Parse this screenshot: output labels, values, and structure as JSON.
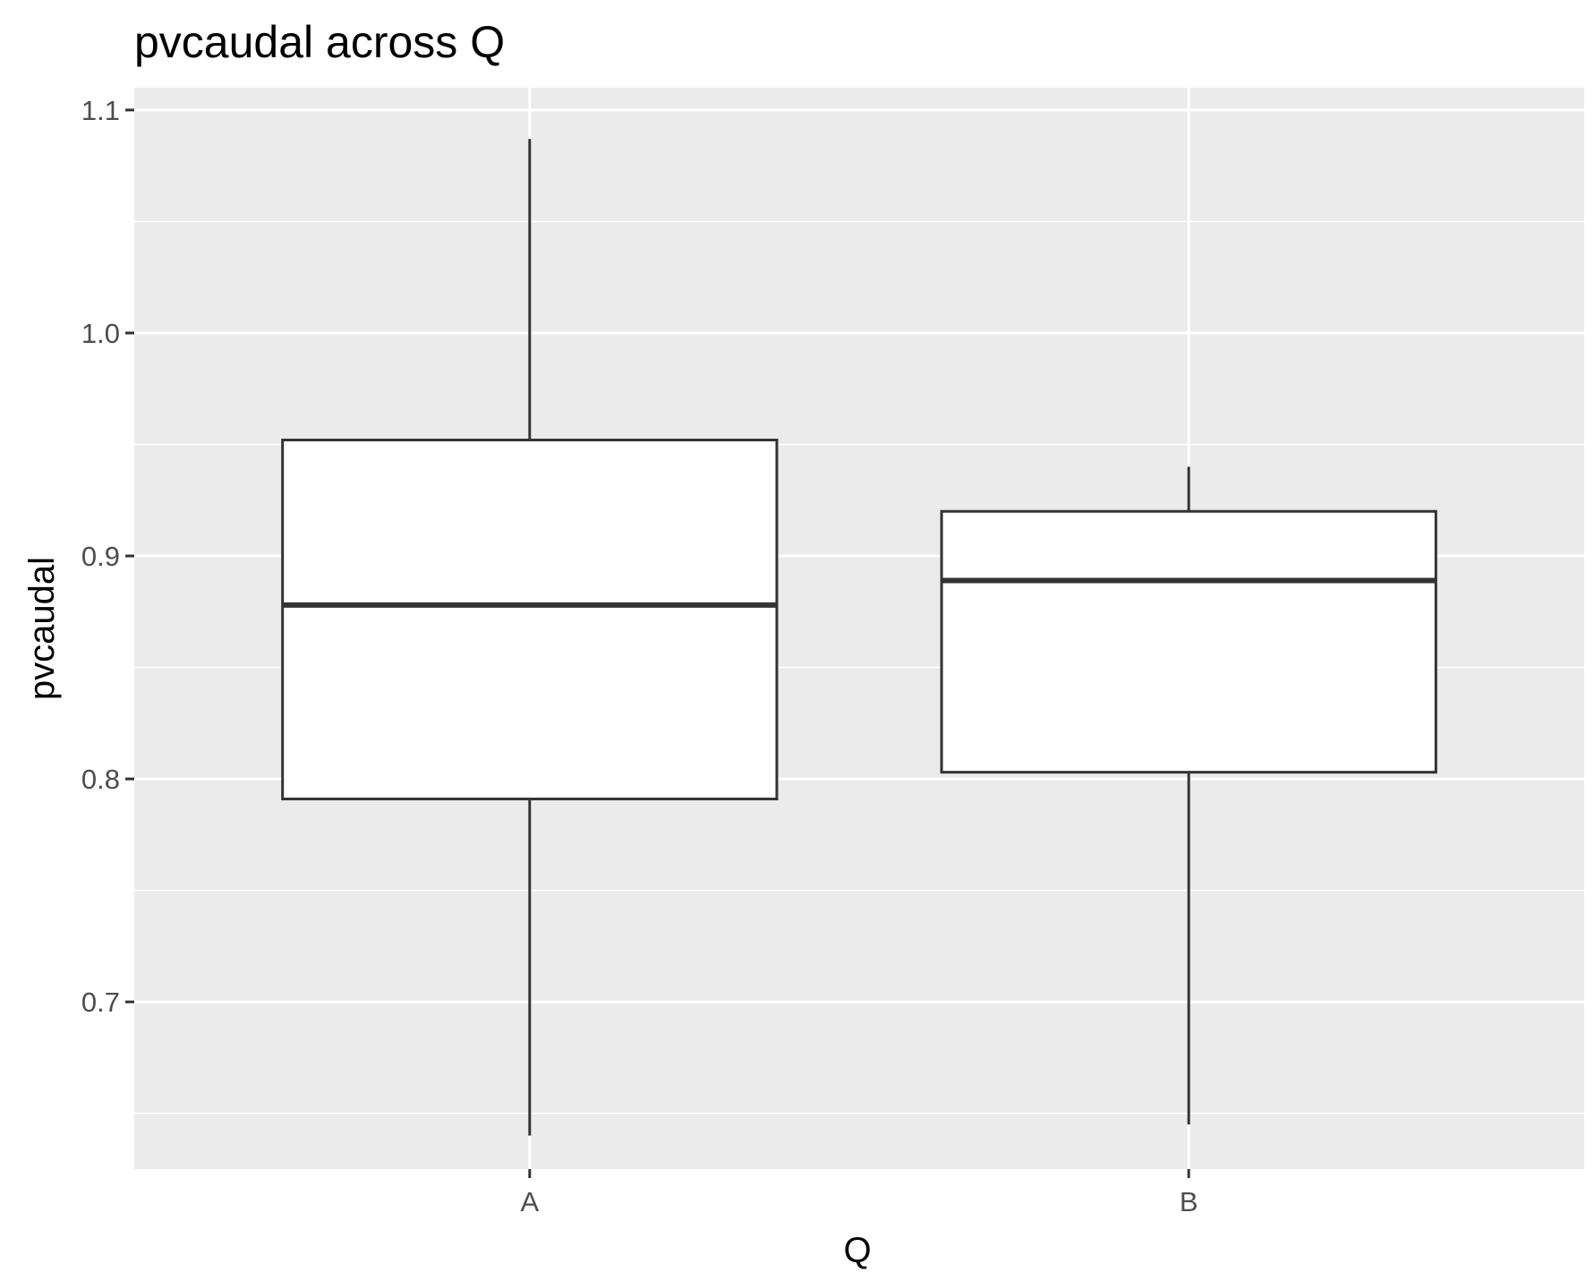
{
  "chart_data": {
    "type": "boxplot",
    "title": "pvcaudal across Q",
    "xlabel": "Q",
    "ylabel": "pvcaudal",
    "categories": [
      "A",
      "B"
    ],
    "boxes": [
      {
        "category": "A",
        "whisker_low": 0.64,
        "q1": 0.791,
        "median": 0.878,
        "q3": 0.952,
        "whisker_high": 1.087
      },
      {
        "category": "B",
        "whisker_low": 0.645,
        "q1": 0.803,
        "median": 0.889,
        "q3": 0.92,
        "whisker_high": 0.94
      }
    ],
    "ylim": [
      0.625,
      1.11
    ],
    "yticks": [
      0.7,
      0.8,
      0.9,
      1.0,
      1.1
    ],
    "ytick_labels": [
      "0.7",
      "0.8",
      "0.9",
      "1.0",
      "1.1"
    ],
    "grid": true,
    "colors": {
      "panel_background": "#ebebeb",
      "grid": "#ffffff",
      "box_fill": "#ffffff",
      "box_stroke": "#333333",
      "tick_label": "#4d4d4d",
      "tick_mark": "#333333"
    }
  }
}
